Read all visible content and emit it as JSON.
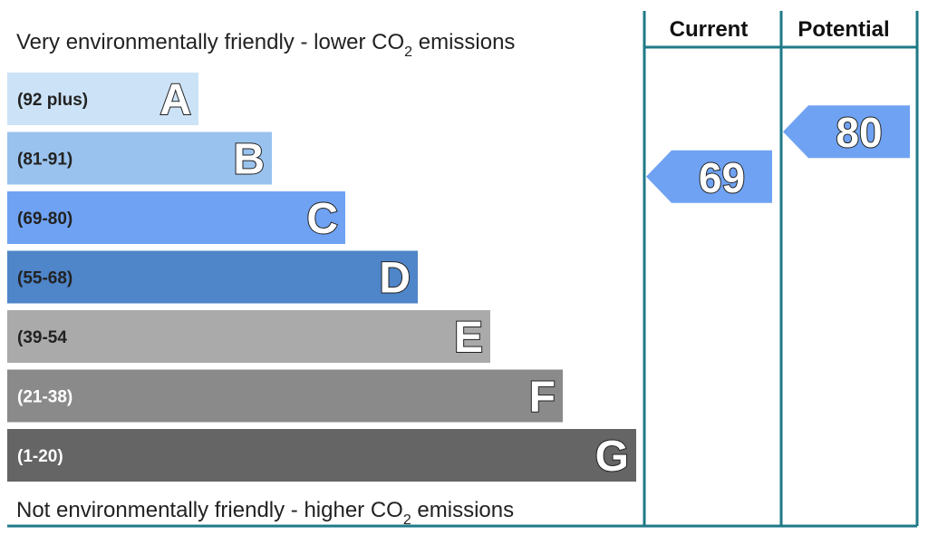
{
  "chart_data": {
    "type": "bar",
    "top_text": {
      "prefix": "Very environmentally friendly - lower CO",
      "sub": "2",
      "suffix": " emissions"
    },
    "bottom_text": {
      "prefix": "Not environmentally friendly - higher CO",
      "sub": "2",
      "suffix": " emissions"
    },
    "columns": {
      "current": "Current",
      "potential": "Potential"
    },
    "bands": [
      {
        "letter": "A",
        "range": "(92 plus)",
        "color": "#cce2f6",
        "label_color": "#222222"
      },
      {
        "letter": "B",
        "range": "(81-91)",
        "color": "#99c3ee",
        "label_color": "#222222"
      },
      {
        "letter": "C",
        "range": "(69-80)",
        "color": "#6fa2f2",
        "label_color": "#222222"
      },
      {
        "letter": "D",
        "range": "(55-68)",
        "color": "#4f85c9",
        "label_color": "#222222"
      },
      {
        "letter": "E",
        "range": "(39-54",
        "color": "#aaaaaa",
        "label_color": "#222222"
      },
      {
        "letter": "F",
        "range": "(21-38)",
        "color": "#8a8a8a",
        "label_color": "#ffffff"
      },
      {
        "letter": "G",
        "range": "(1-20)",
        "color": "#656565",
        "label_color": "#ffffff"
      }
    ],
    "current": {
      "value": "69",
      "band": "C",
      "color": "#6fa2f2"
    },
    "potential": {
      "value": "80",
      "band": "C",
      "color": "#6fa2f2"
    },
    "frame_color": "#1f7a87"
  }
}
